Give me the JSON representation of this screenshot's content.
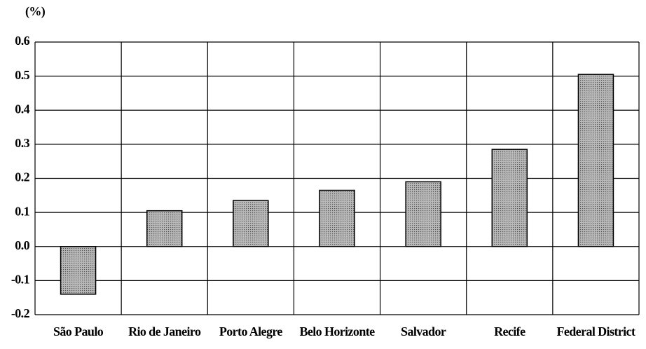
{
  "chart_data": {
    "type": "bar",
    "y_label": "(%)",
    "categories": [
      "São Paulo",
      "Rio de Janeiro",
      "Porto Alegre",
      "Belo Horizonte",
      "Salvador",
      "Recife",
      "Federal District"
    ],
    "values": [
      -0.14,
      0.105,
      0.135,
      0.165,
      0.19,
      0.285,
      0.505
    ],
    "color": "#b8b8b8",
    "ylim": [
      -0.2,
      0.6
    ],
    "yticks": [
      -0.2,
      -0.1,
      {
        "value": 0,
        "label": "0.0"
      },
      0.1,
      0.2,
      0.3,
      0.4,
      0.5,
      0.6
    ],
    "grid": true
  }
}
